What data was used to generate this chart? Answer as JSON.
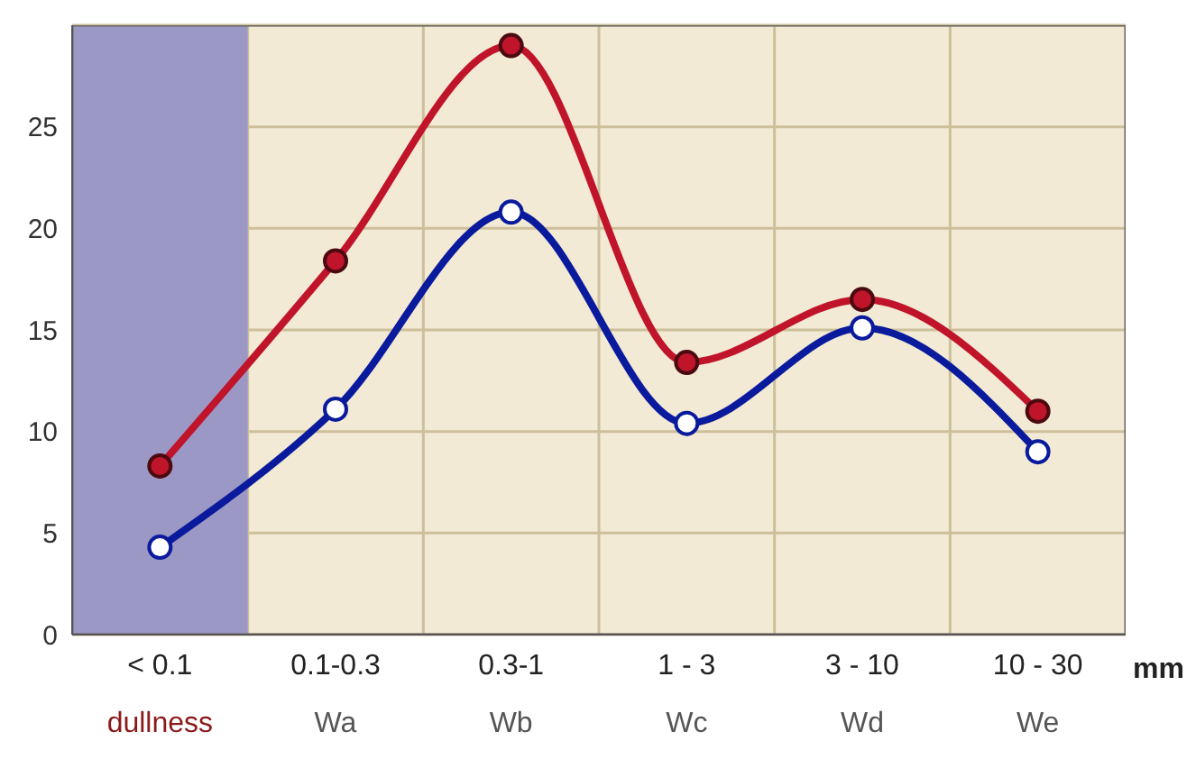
{
  "chart_data": {
    "type": "line",
    "categories": [
      "< 0.1\ndullness",
      "0.1-0.3\nWa",
      "0.3-1\nWb",
      "1 - 3\nWc",
      "3 - 10\nWd",
      "10 - 30\nWe"
    ],
    "xlabel": "mm",
    "series": [
      {
        "color": "#c0142a",
        "values": [
          8.3,
          18.4,
          29.0,
          13.4,
          16.5,
          11.0
        ]
      },
      {
        "color": "#0a1a9c",
        "values": [
          4.3,
          11.1,
          20.8,
          10.4,
          15.1,
          9.0
        ]
      }
    ],
    "ylim": [
      0,
      30
    ],
    "yticks": [
      0,
      5,
      10,
      15,
      20,
      25
    ],
    "grid": true,
    "marker": "circle",
    "line_style": "solid",
    "bands": [
      {
        "axis": "x",
        "from": "< 0.1\ndullness",
        "to": "< 0.1\ndullness",
        "color": "#9c98c6"
      }
    ]
  }
}
